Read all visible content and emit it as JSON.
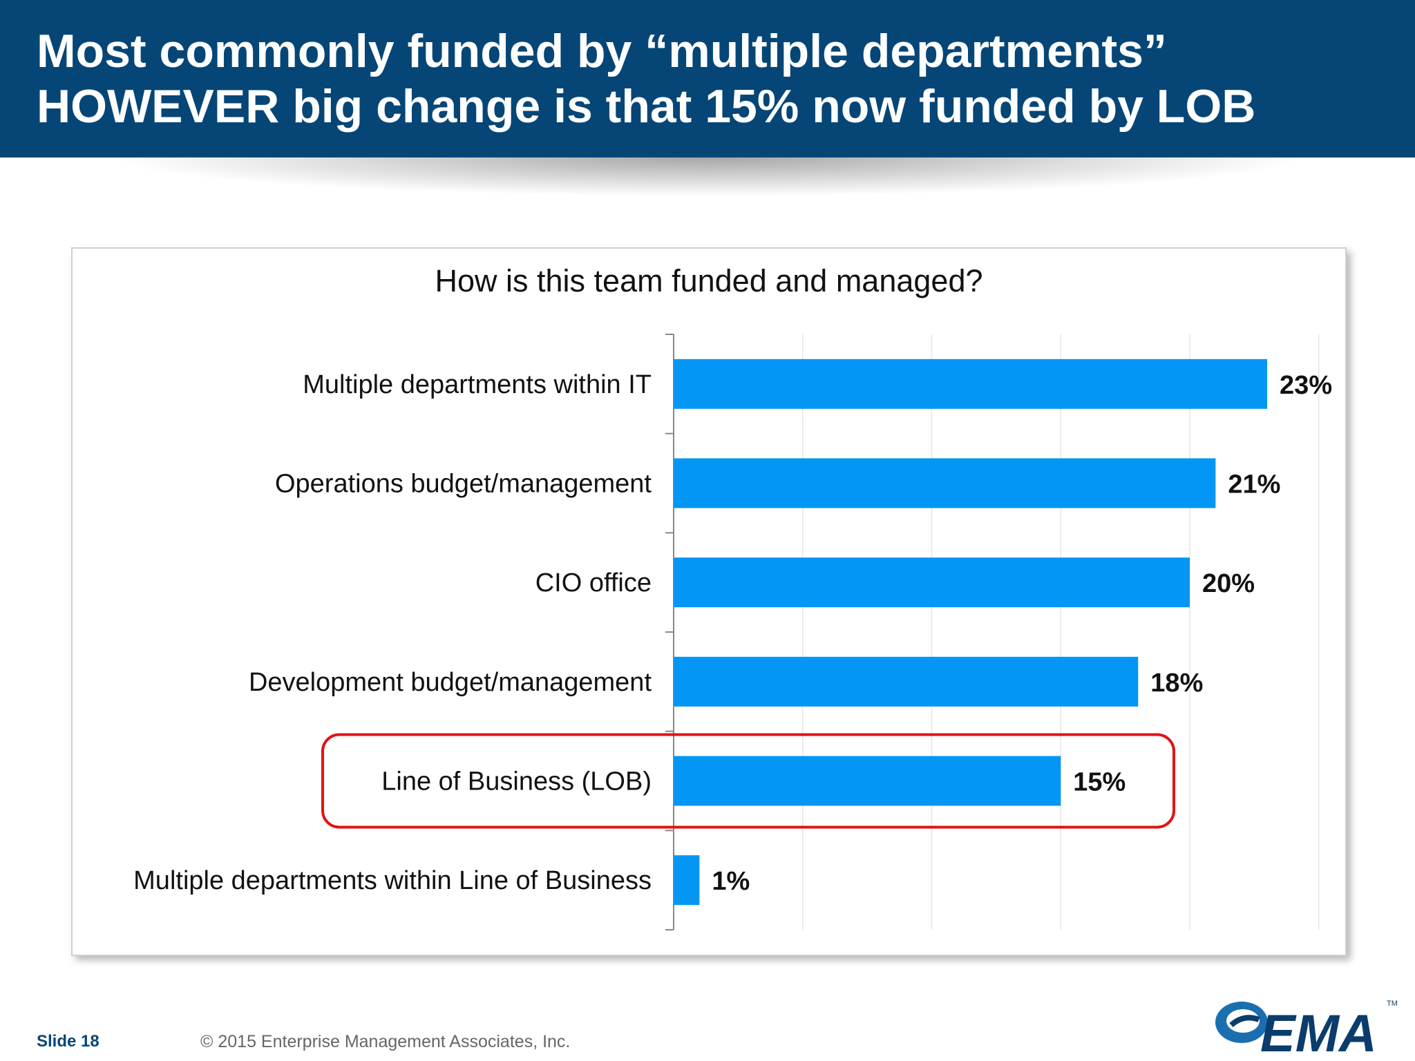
{
  "slide": {
    "title_line1": "Most commonly funded by “multiple departments”",
    "title_line2": "HOWEVER big change is that 15% now funded by LOB",
    "slide_number": "Slide 18",
    "copyright": "© 2015 Enterprise Management Associates, Inc.",
    "logo_text": "EMA",
    "logo_tm": "TM"
  },
  "chart_data": {
    "type": "bar",
    "orientation": "horizontal",
    "title": "How is this team funded and managed?",
    "categories": [
      "Multiple departments within IT",
      "Operations budget/management",
      "CIO office",
      "Development budget/management",
      "Line of Business (LOB)",
      "Multiple departments within Line of Business"
    ],
    "values": [
      23,
      21,
      20,
      18,
      15,
      1
    ],
    "value_labels": [
      "23%",
      "21%",
      "20%",
      "18%",
      "15%",
      "1%"
    ],
    "xlim": [
      0,
      25
    ],
    "grid": true,
    "highlighted_category": "Line of Business (LOB)",
    "colors": {
      "bar": "#0496f5",
      "highlight_box": "#e01414",
      "grid": "#e6e6e6",
      "axis": "#888888"
    }
  }
}
